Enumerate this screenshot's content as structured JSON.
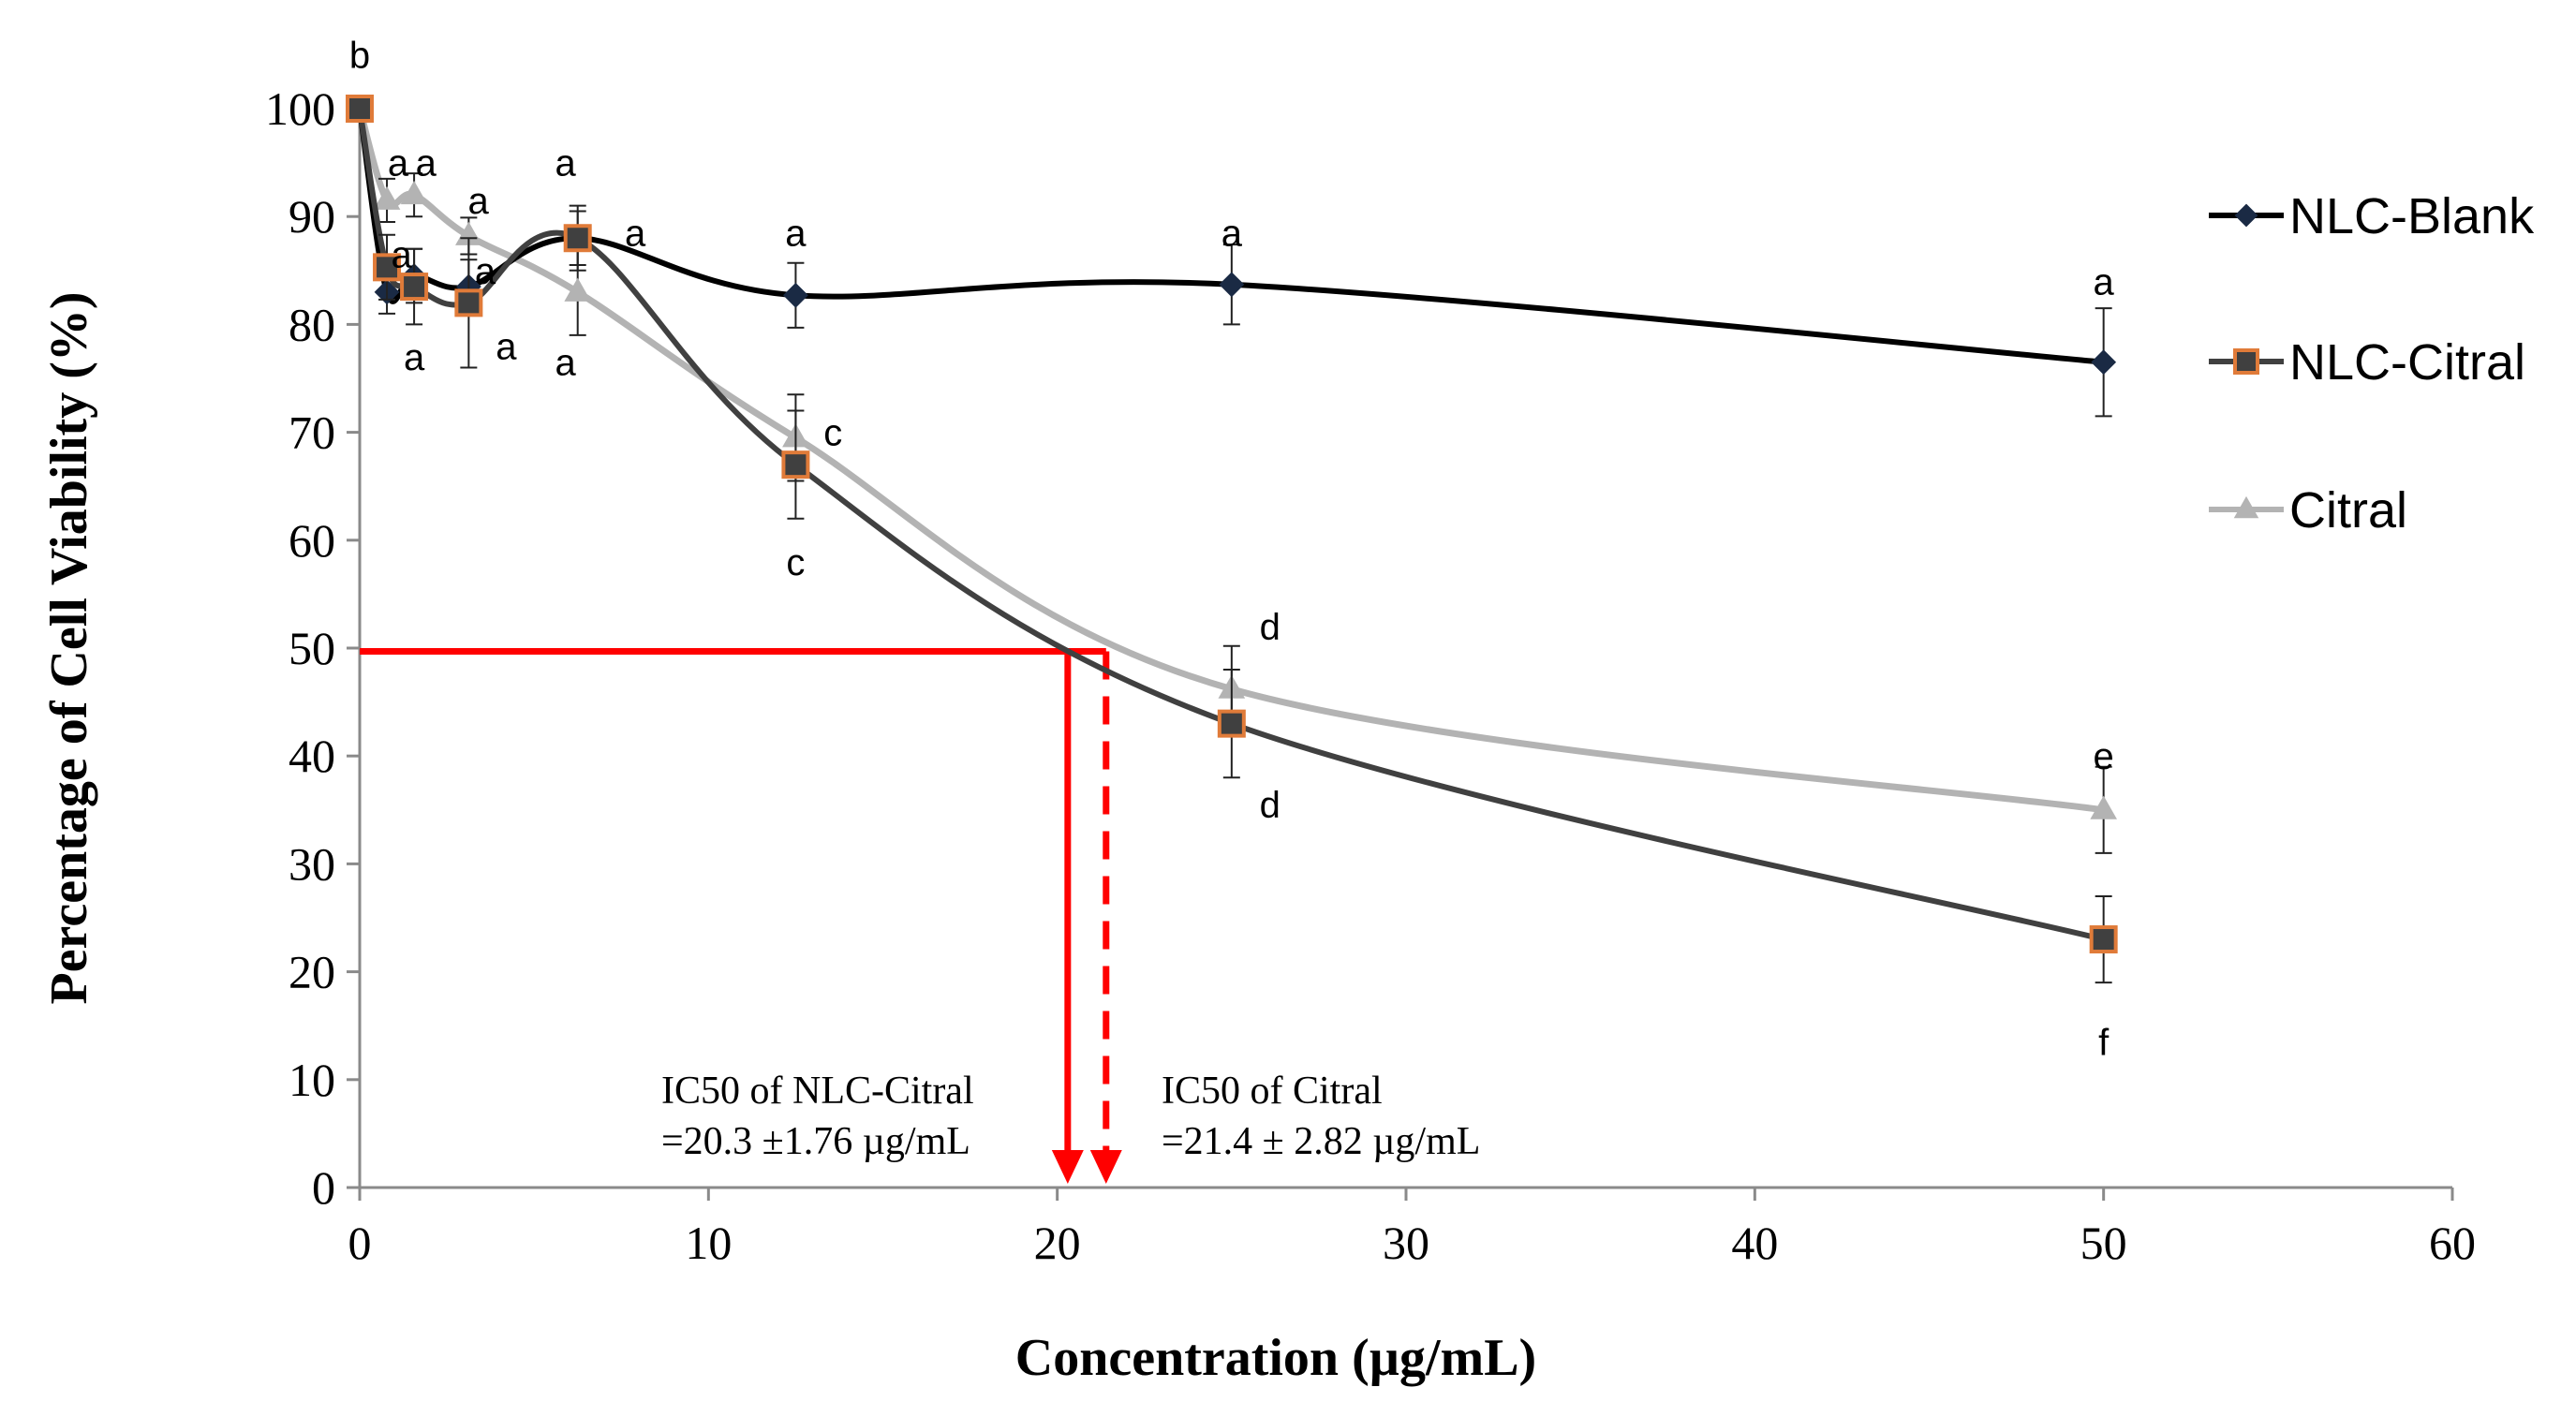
{
  "chart_data": {
    "type": "line",
    "xlabel": "Concentration (µg/mL)",
    "ylabel": "Percentage of Cell Viability (%)",
    "xlim": [
      0,
      60
    ],
    "ylim": [
      0,
      100
    ],
    "xticks": [
      "0",
      "10",
      "20",
      "30",
      "40",
      "50",
      "60"
    ],
    "yticks": [
      "0",
      "10",
      "20",
      "30",
      "40",
      "50",
      "60",
      "70",
      "80",
      "90",
      "100"
    ],
    "grid": false,
    "legend_position": "right",
    "series": [
      {
        "name": "NLC-Blank",
        "color": "#000000",
        "marker": "diamond",
        "x": [
          0,
          0.78,
          1.56,
          3.125,
          6.25,
          12.5,
          25,
          50
        ],
        "y": [
          100,
          83,
          84.5,
          83.5,
          88,
          82.7,
          83.7,
          76.5
        ],
        "err": [
          0,
          2,
          2.5,
          2.5,
          2.5,
          3,
          3.7,
          5
        ]
      },
      {
        "name": "NLC-Citral",
        "color": "#404040",
        "marker": "square",
        "marker_edge": "#e07b39",
        "x": [
          0,
          0.78,
          1.56,
          3.125,
          6.25,
          12.5,
          25,
          50
        ],
        "y": [
          100,
          85.3,
          83.5,
          82,
          88,
          67,
          43,
          23
        ],
        "err": [
          0,
          3,
          3.5,
          6,
          3,
          5,
          5,
          4
        ]
      },
      {
        "name": "Citral",
        "color": "#b3b3b3",
        "marker": "triangle",
        "x": [
          0,
          0.78,
          1.56,
          3.125,
          6.25,
          12.5,
          25,
          50
        ],
        "y": [
          100,
          91.5,
          92,
          88.2,
          83,
          69.5,
          46.2,
          35
        ],
        "err": [
          0,
          2,
          2,
          1.7,
          4,
          4,
          4,
          4
        ]
      }
    ],
    "letters": [
      {
        "text": "b",
        "x": 0,
        "y": 105,
        "anchor": "middle"
      },
      {
        "text": "a",
        "x": 1.1,
        "y": 95,
        "anchor": "middle"
      },
      {
        "text": "a",
        "x": 1.9,
        "y": 95,
        "anchor": "middle"
      },
      {
        "text": "a",
        "x": 3.4,
        "y": 91.5,
        "anchor": "middle"
      },
      {
        "text": "a",
        "x": 5.9,
        "y": 95,
        "anchor": "middle"
      },
      {
        "text": "a",
        "x": 7.9,
        "y": 88.5,
        "anchor": "middle"
      },
      {
        "text": "a",
        "x": 12.5,
        "y": 88.5,
        "anchor": "middle"
      },
      {
        "text": "a",
        "x": 25,
        "y": 88.5,
        "anchor": "middle"
      },
      {
        "text": "a",
        "x": 50,
        "y": 84,
        "anchor": "middle"
      },
      {
        "text": "a",
        "x": 1.2,
        "y": 86.5,
        "anchor": "middle"
      },
      {
        "text": "a",
        "x": 1.56,
        "y": 77,
        "anchor": "middle"
      },
      {
        "text": "a",
        "x": 4.2,
        "y": 78,
        "anchor": "middle"
      },
      {
        "text": "a",
        "x": 3.6,
        "y": 85,
        "anchor": "middle"
      },
      {
        "text": "a",
        "x": 5.9,
        "y": 76.5,
        "anchor": "middle"
      },
      {
        "text": "c",
        "x": 13.3,
        "y": 70,
        "anchor": "start"
      },
      {
        "text": "c",
        "x": 12.5,
        "y": 58,
        "anchor": "middle"
      },
      {
        "text": "d",
        "x": 25.8,
        "y": 52,
        "anchor": "start"
      },
      {
        "text": "d",
        "x": 25.8,
        "y": 35.5,
        "anchor": "start"
      },
      {
        "text": "e",
        "x": 50,
        "y": 40,
        "anchor": "middle"
      },
      {
        "text": "f",
        "x": 50,
        "y": 13.5,
        "anchor": "middle"
      }
    ],
    "ic50": {
      "y": 49.7,
      "nlc_citral_x": 20.3,
      "citral_x": 21.4,
      "color": "#ff0000",
      "label_nlc_line1": "IC50 of NLC-Citral",
      "label_nlc_line2": "=20.3 ±1.76 µg/mL",
      "label_citral_line1": "IC50 of Citral",
      "label_citral_line2": "=21.4 ± 2.82 µg/mL"
    }
  }
}
